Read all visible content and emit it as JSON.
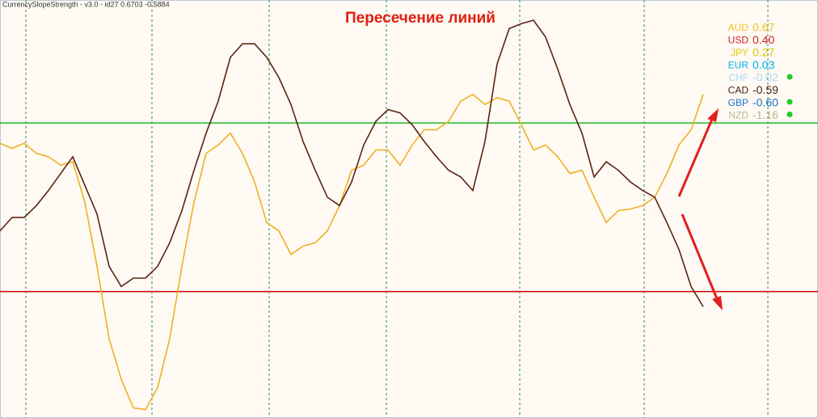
{
  "chart_data": {
    "type": "line",
    "header": "CurrencySlopeStrength - v3.0 - id27 0.6703 -0.5884",
    "title": "Пересечение линий",
    "ylim": [
      -1.25,
      1.23
    ],
    "levels": [
      {
        "value": 0.5,
        "color": "#22bb22"
      },
      {
        "value": -0.5,
        "color": "#cc0000"
      }
    ],
    "series": [
      {
        "color": "#f0b020",
        "values": [
          0.38,
          0.35,
          0.38,
          0.32,
          0.3,
          0.25,
          0.27,
          0.03,
          -0.35,
          -0.78,
          -1.02,
          -1.19,
          -1.2,
          -1.07,
          -0.78,
          -0.35,
          0.03,
          0.32,
          0.37,
          0.44,
          0.32,
          0.15,
          -0.09,
          -0.14,
          -0.28,
          -0.23,
          -0.21,
          -0.14,
          0.01,
          0.22,
          0.25,
          0.34,
          0.34,
          0.25,
          0.37,
          0.46,
          0.46,
          0.51,
          0.63,
          0.67,
          0.61,
          0.65,
          0.63,
          0.49,
          0.34,
          0.37,
          0.3,
          0.2,
          0.22,
          0.06,
          -0.09,
          -0.02,
          -0.01,
          0.01,
          0.06,
          0.2,
          0.37,
          0.46,
          0.67
        ]
      },
      {
        "color": "#5a2410",
        "values": [
          -0.14,
          -0.06,
          -0.06,
          0.01,
          0.1,
          0.2,
          0.3,
          0.13,
          -0.04,
          -0.35,
          -0.47,
          -0.42,
          -0.42,
          -0.35,
          -0.21,
          -0.02,
          0.22,
          0.44,
          0.63,
          0.89,
          0.97,
          0.97,
          0.89,
          0.77,
          0.61,
          0.39,
          0.22,
          0.06,
          0.01,
          0.15,
          0.37,
          0.51,
          0.58,
          0.56,
          0.49,
          0.39,
          0.3,
          0.22,
          0.18,
          0.1,
          0.39,
          0.85,
          1.06,
          1.09,
          1.11,
          1.01,
          0.82,
          0.61,
          0.44,
          0.18,
          0.27,
          0.22,
          0.15,
          0.1,
          0.06,
          -0.09,
          -0.25,
          -0.47,
          -0.59
        ]
      }
    ],
    "strength_list": [
      {
        "name": "AUD",
        "color": "#f0c020",
        "value": 0.67,
        "value_label": "0.67",
        "dot": false
      },
      {
        "name": "USD",
        "color": "#cc2222",
        "value": 0.4,
        "value_label": "0.40",
        "dot": false
      },
      {
        "name": "JPY",
        "color": "#e0c800",
        "value": 0.27,
        "value_label": "0.27",
        "dot": false
      },
      {
        "name": "EUR",
        "color": "#00b0f0",
        "value": 0.03,
        "value_label": "0.03",
        "dot": false
      },
      {
        "name": "CHF",
        "color": "#a8dcf8",
        "value": -0.02,
        "value_label": "-0.02",
        "dot": true
      },
      {
        "name": "CAD",
        "color": "#4a2410",
        "value": -0.59,
        "value_label": "-0.59",
        "dot": false
      },
      {
        "name": "GBP",
        "color": "#1e6fd0",
        "value": -0.6,
        "value_label": "-0.60",
        "dot": true
      },
      {
        "name": "NZD",
        "color": "#b8b890",
        "value": -1.16,
        "value_label": "-1.16",
        "dot": true
      }
    ]
  }
}
